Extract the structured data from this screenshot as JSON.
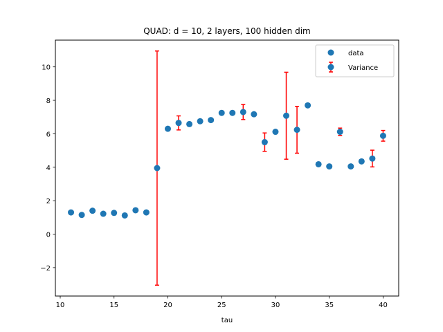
{
  "chart_data": {
    "type": "scatter",
    "title": "QUAD: d = 10, 2 layers, 100 hidden dim",
    "xlabel": "tau",
    "ylabel": "",
    "xlim": [
      9.55,
      41.45
    ],
    "ylim": [
      -3.7,
      11.6
    ],
    "xticks": [
      10,
      15,
      20,
      25,
      30,
      35,
      40
    ],
    "yticks": [
      -2,
      0,
      2,
      4,
      6,
      8,
      10
    ],
    "grid": false,
    "legend": {
      "placement": "top-right",
      "entries": [
        "data",
        "Variance"
      ]
    },
    "colors": {
      "marker": "#1f77b4",
      "errorbar": "#ff0000"
    },
    "series": [
      {
        "name": "data",
        "x": [
          11,
          12,
          13,
          14,
          15,
          16,
          17,
          18,
          19,
          20,
          21,
          22,
          23,
          24,
          25,
          26,
          27,
          28,
          29,
          30,
          31,
          32,
          33,
          34,
          35,
          36,
          37,
          38,
          39,
          40
        ],
        "y": [
          1.3,
          1.15,
          1.4,
          1.22,
          1.27,
          1.12,
          1.43,
          1.3,
          3.95,
          6.3,
          6.65,
          6.58,
          6.75,
          6.82,
          7.25,
          7.25,
          7.3,
          7.17,
          5.5,
          6.12,
          7.08,
          6.24,
          7.7,
          4.18,
          4.05,
          6.12,
          4.05,
          4.35,
          4.52,
          5.88
        ]
      }
    ],
    "errorbars": {
      "name": "Variance",
      "x": [
        19,
        21,
        27,
        29,
        31,
        32,
        36,
        39,
        40
      ],
      "y": [
        3.95,
        6.65,
        7.3,
        5.5,
        7.08,
        6.24,
        6.12,
        4.52,
        5.88
      ],
      "err": [
        7.0,
        0.42,
        0.45,
        0.55,
        2.6,
        1.4,
        0.22,
        0.5,
        0.32
      ]
    }
  }
}
